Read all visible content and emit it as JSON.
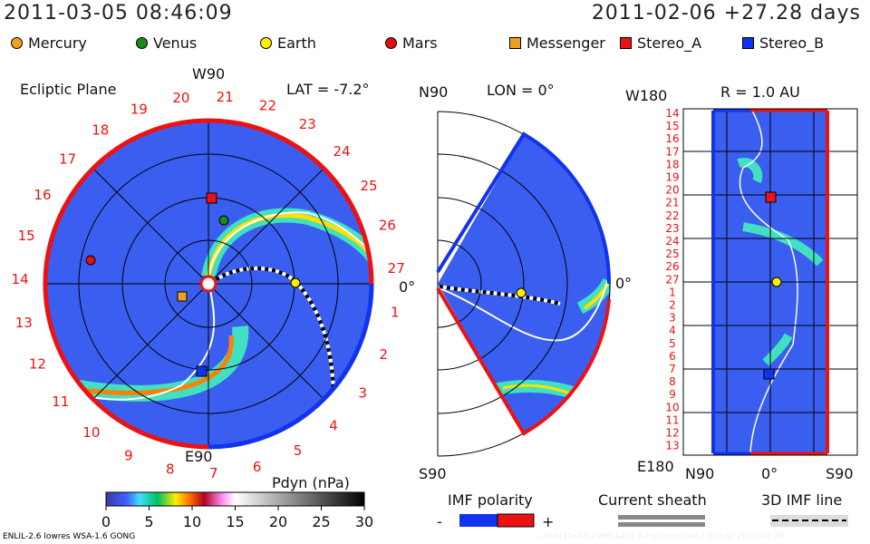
{
  "header": {
    "datetime": "2011-03-05 08:46:09",
    "reference": "2011-02-06 +27.28 days"
  },
  "legend": [
    {
      "label": "Mercury",
      "shape": "circle",
      "color": "#f0a020"
    },
    {
      "label": "Venus",
      "shape": "circle",
      "color": "#1a8a1a"
    },
    {
      "label": "Earth",
      "shape": "circle",
      "color": "#ffee00"
    },
    {
      "label": "Mars",
      "shape": "circle",
      "color": "#e01010"
    },
    {
      "label": "Messenger",
      "shape": "square",
      "color": "#f0a020"
    },
    {
      "label": "Stereo_A",
      "shape": "square",
      "color": "#ee1111"
    },
    {
      "label": "Stereo_B",
      "shape": "square",
      "color": "#1133ee"
    }
  ],
  "ecliptic": {
    "title": "Ecliptic Plane",
    "top": "W90",
    "bottom": "E90",
    "right": "0°",
    "lat": "LAT = -7.2°",
    "carrington_labels": [
      "1",
      "2",
      "3",
      "4",
      "5",
      "6",
      "7",
      "8",
      "9",
      "10",
      "11",
      "12",
      "13",
      "14",
      "15",
      "16",
      "17",
      "18",
      "19",
      "20",
      "21",
      "22",
      "23",
      "24",
      "25",
      "26",
      "27"
    ]
  },
  "meridional": {
    "top": "N90",
    "bottom": "S90",
    "right": "0°",
    "lon": "LON = 0°"
  },
  "radial": {
    "title": "R = 1.0 AU",
    "top": "W180",
    "bottom": "E180",
    "x_left": "N90",
    "x_mid": "0°",
    "x_right": "S90",
    "y_labels": [
      "14",
      "15",
      "16",
      "17",
      "18",
      "19",
      "20",
      "21",
      "22",
      "23",
      "24",
      "25",
      "26",
      "27",
      "1",
      "2",
      "3",
      "4",
      "5",
      "6",
      "7",
      "8",
      "9",
      "10",
      "11",
      "12",
      "13"
    ]
  },
  "chart_data": {
    "type": "heatmap",
    "title": "Pdyn (nPa)",
    "colorbar": {
      "label": "Pdyn (nPa)",
      "range": [
        0,
        30
      ],
      "ticks": [
        "0",
        "5",
        "10",
        "15",
        "20",
        "25",
        "30"
      ]
    },
    "keys": {
      "imf": "IMF polarity",
      "minus": "-",
      "plus": "+",
      "sheath": "Current sheath",
      "imfline": "3D IMF line"
    }
  },
  "footer": {
    "model": "ENLIL-2.6 lowres WSA-1.6 GONG",
    "run": ".//64x15x45.2068-a2b2.4-mp1umn1de-1.g15q0   2011-02-28"
  }
}
